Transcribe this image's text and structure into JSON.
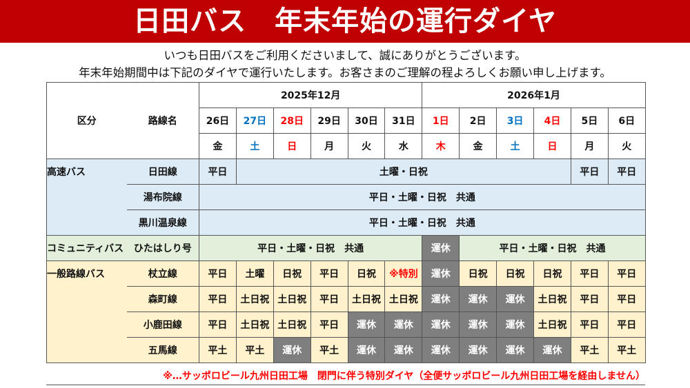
{
  "title": "日田バス　年末年始の運行ダイヤ",
  "intro": [
    "いつも日田バスをご利用くださいまして、誠にありがとうございます。",
    "年末年始期間中は下記のダイヤで運行いたします。お客さまのご理解の程よろしくお願い申し上げます。"
  ],
  "header": {
    "category": "区分",
    "route": "路線名",
    "months": [
      {
        "label": "2025年12月",
        "span": 6
      },
      {
        "label": "2026年1月",
        "span": 6
      }
    ],
    "days": [
      {
        "d": "26日",
        "w": "金",
        "t": ""
      },
      {
        "d": "27日",
        "w": "土",
        "t": "sat"
      },
      {
        "d": "28日",
        "w": "日",
        "t": "sun"
      },
      {
        "d": "29日",
        "w": "月",
        "t": ""
      },
      {
        "d": "30日",
        "w": "火",
        "t": ""
      },
      {
        "d": "31日",
        "w": "水",
        "t": ""
      },
      {
        "d": "1日",
        "w": "木",
        "t": "sun"
      },
      {
        "d": "2日",
        "w": "金",
        "t": ""
      },
      {
        "d": "3日",
        "w": "土",
        "t": "sat"
      },
      {
        "d": "4日",
        "w": "日",
        "t": "sun"
      },
      {
        "d": "5日",
        "w": "月",
        "t": ""
      },
      {
        "d": "6日",
        "w": "火",
        "t": ""
      }
    ]
  },
  "groups": [
    {
      "category": "高速バス",
      "color": "blue",
      "routes": [
        {
          "name": "日田線",
          "cells": [
            {
              "text": "平日",
              "span": 1
            },
            {
              "text": "土曜・日祝",
              "span": 9
            },
            {
              "text": "平日",
              "span": 1
            },
            {
              "text": "平日",
              "span": 1
            }
          ]
        },
        {
          "name": "湯布院線",
          "cells": [
            {
              "text": "平日・土曜・日祝　共通",
              "span": 12
            }
          ]
        },
        {
          "name": "黒川温泉線",
          "cells": [
            {
              "text": "平日・土曜・日祝　共通",
              "span": 12
            }
          ]
        }
      ]
    },
    {
      "category": "コミュニティバス",
      "color": "green",
      "routes": [
        {
          "name": "ひたはしり号",
          "cells": [
            {
              "text": "平日・土曜・日祝　共通",
              "span": 6
            },
            {
              "text": "運休",
              "span": 1,
              "type": "off"
            },
            {
              "text": "平日・土曜・日祝　共通",
              "span": 5
            }
          ]
        }
      ]
    },
    {
      "category": "一般路線バス",
      "color": "yellow",
      "routes": [
        {
          "name": "杖立線",
          "cells": [
            {
              "text": "平日"
            },
            {
              "text": "土曜"
            },
            {
              "text": "日祝"
            },
            {
              "text": "平日"
            },
            {
              "text": "日祝"
            },
            {
              "text": "※特別",
              "type": "special"
            },
            {
              "text": "運休",
              "type": "off"
            },
            {
              "text": "日祝"
            },
            {
              "text": "日祝"
            },
            {
              "text": "日祝"
            },
            {
              "text": "平日"
            },
            {
              "text": "平日"
            }
          ]
        },
        {
          "name": "森町線",
          "cells": [
            {
              "text": "平日"
            },
            {
              "text": "土日祝"
            },
            {
              "text": "土日祝"
            },
            {
              "text": "平日"
            },
            {
              "text": "土日祝"
            },
            {
              "text": "土日祝"
            },
            {
              "text": "運休",
              "type": "off"
            },
            {
              "text": "運休",
              "type": "off"
            },
            {
              "text": "運休",
              "type": "off"
            },
            {
              "text": "土日祝"
            },
            {
              "text": "平日"
            },
            {
              "text": "平日"
            }
          ]
        },
        {
          "name": "小鹿田線",
          "cells": [
            {
              "text": "平日"
            },
            {
              "text": "土日祝"
            },
            {
              "text": "土日祝"
            },
            {
              "text": "平日"
            },
            {
              "text": "運休",
              "type": "off"
            },
            {
              "text": "運休",
              "type": "off"
            },
            {
              "text": "運休",
              "type": "off"
            },
            {
              "text": "運休",
              "type": "off"
            },
            {
              "text": "運休",
              "type": "off"
            },
            {
              "text": "土日祝"
            },
            {
              "text": "平日"
            },
            {
              "text": "平日"
            }
          ]
        },
        {
          "name": "五馬線",
          "cells": [
            {
              "text": "平土"
            },
            {
              "text": "平土"
            },
            {
              "text": "運休",
              "type": "off"
            },
            {
              "text": "平土"
            },
            {
              "text": "運休",
              "type": "off"
            },
            {
              "text": "運休",
              "type": "off"
            },
            {
              "text": "運休",
              "type": "off"
            },
            {
              "text": "運休",
              "type": "off"
            },
            {
              "text": "運休",
              "type": "off"
            },
            {
              "text": "運休",
              "type": "off"
            },
            {
              "text": "平土"
            },
            {
              "text": "平土"
            }
          ]
        }
      ]
    }
  ],
  "note": "※…サッポロビール九州日田工場　閉門に伴う特別ダイヤ（全便サッポロビール九州日田工場を経由しません）"
}
